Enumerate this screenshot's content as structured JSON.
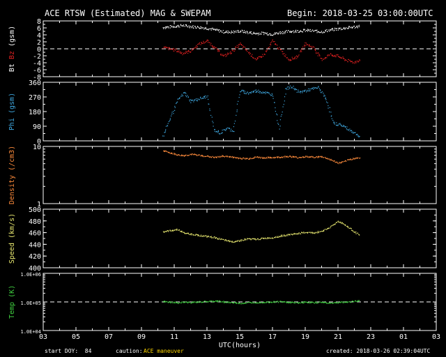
{
  "header": {
    "title": "ACE RTSW (Estimated) MAG & SWEPAM",
    "begin": "Begin: 2018-03-25 03:00:00UTC"
  },
  "footer": {
    "start_doy": "start DOY:  84",
    "caution_label": "caution:",
    "caution_value": "ACE maneuver",
    "created": "created: 2018-03-26 02:39:04UTC"
  },
  "colors": {
    "bt": "#ffffff",
    "bz": "#e02020",
    "phi": "#3fa8e0",
    "density": "#ff8c3c",
    "speed": "#e8e870",
    "temp": "#40d040",
    "frame": "#ffffff",
    "caution": "#ffd700"
  },
  "chart_data": {
    "type": "scatter",
    "xlabel": "UTC(hours)",
    "x_ticks": [
      "03",
      "05",
      "07",
      "09",
      "11",
      "13",
      "15",
      "17",
      "19",
      "21",
      "23",
      "01",
      "03"
    ],
    "x_range": [
      3,
      27
    ],
    "panels": [
      {
        "id": "mag",
        "ylabel_parts": [
          "Bt",
          " ",
          "Bz",
          " (gsm)"
        ],
        "ylim": [
          -8,
          8
        ],
        "y_ticks": [
          8,
          6,
          4,
          2,
          0,
          -2,
          -4,
          -6,
          -8
        ],
        "y_tick_labels": [
          "8",
          "6",
          "4",
          "2",
          "0",
          "-2",
          "-4",
          "-6",
          "-8"
        ],
        "reference_line": 0,
        "series": [
          {
            "name": "Bt",
            "color_key": "bt",
            "points": [
              [
                10.3,
                6.2
              ],
              [
                11.1,
                6.6
              ],
              [
                11.5,
                6.8
              ],
              [
                12,
                6.5
              ],
              [
                12.5,
                6.3
              ],
              [
                13,
                6.0
              ],
              [
                13.5,
                5.5
              ],
              [
                14,
                5.0
              ],
              [
                14.5,
                4.9
              ],
              [
                15,
                5.2
              ],
              [
                15.5,
                4.8
              ],
              [
                16,
                4.5
              ],
              [
                16.5,
                4.6
              ],
              [
                17,
                4.3
              ],
              [
                17.5,
                4.8
              ],
              [
                18,
                5.1
              ],
              [
                18.5,
                5.2
              ],
              [
                19,
                5.4
              ],
              [
                19.5,
                5.2
              ],
              [
                20,
                5.0
              ],
              [
                20.5,
                5.5
              ],
              [
                21,
                5.8
              ],
              [
                21.5,
                6.1
              ],
              [
                22,
                6.4
              ],
              [
                22.3,
                6.6
              ]
            ]
          },
          {
            "name": "Bz",
            "color_key": "bz",
            "points": [
              [
                10.3,
                0.5
              ],
              [
                11.1,
                -0.3
              ],
              [
                11.5,
                -1.2
              ],
              [
                12,
                -0.5
              ],
              [
                12.5,
                1.5
              ],
              [
                13,
                2.4
              ],
              [
                13.5,
                0.2
              ],
              [
                14,
                -2.0
              ],
              [
                14.5,
                -0.8
              ],
              [
                15,
                1.5
              ],
              [
                15.5,
                -0.8
              ],
              [
                16,
                -3.0
              ],
              [
                16.5,
                -1.5
              ],
              [
                17,
                2.4
              ],
              [
                17.5,
                -0.5
              ],
              [
                18,
                -3.0
              ],
              [
                18.5,
                -2.2
              ],
              [
                19,
                1.6
              ],
              [
                19.5,
                0.4
              ],
              [
                20,
                -3.0
              ],
              [
                20.5,
                -1.5
              ],
              [
                21,
                -2.0
              ],
              [
                21.5,
                -3.2
              ],
              [
                22,
                -3.8
              ],
              [
                22.3,
                -3.0
              ]
            ]
          }
        ]
      },
      {
        "id": "phi",
        "ylabel_parts": [
          "Phi (gsm)"
        ],
        "ylim": [
          0,
          360
        ],
        "y_ticks": [
          360,
          270,
          180,
          90,
          0
        ],
        "y_tick_labels": [
          "360",
          "270",
          "180",
          "90",
          "0"
        ],
        "series": [
          {
            "name": "Phi",
            "color_key": "phi",
            "points": [
              [
                10.3,
                30
              ],
              [
                11.2,
                250
              ],
              [
                11.6,
                300
              ],
              [
                12,
                245
              ],
              [
                12.5,
                260
              ],
              [
                13,
                275
              ],
              [
                13.4,
                70
              ],
              [
                13.8,
                50
              ],
              [
                14.2,
                80
              ],
              [
                14.6,
                65
              ],
              [
                15,
                310
              ],
              [
                15.5,
                295
              ],
              [
                16,
                310
              ],
              [
                16.5,
                300
              ],
              [
                17,
                285
              ],
              [
                17.4,
                80
              ],
              [
                17.8,
                320
              ],
              [
                18.2,
                335
              ],
              [
                18.6,
                300
              ],
              [
                19,
                310
              ],
              [
                19.4,
                320
              ],
              [
                19.8,
                330
              ],
              [
                20.3,
                250
              ],
              [
                20.7,
                110
              ],
              [
                21.2,
                100
              ],
              [
                21.6,
                75
              ],
              [
                22,
                50
              ],
              [
                22.3,
                30
              ]
            ]
          }
        ]
      },
      {
        "id": "density",
        "ylabel_parts": [
          "Density (/cm3)"
        ],
        "scale": "log",
        "ylim": [
          1,
          10
        ],
        "y_ticks": [
          10,
          1
        ],
        "y_tick_labels": [
          "10",
          "1"
        ],
        "series": [
          {
            "name": "Density",
            "color_key": "density",
            "points": [
              [
                10.3,
                8.5
              ],
              [
                11.2,
                7.2
              ],
              [
                11.6,
                7.0
              ],
              [
                12,
                7.4
              ],
              [
                12.5,
                7.1
              ],
              [
                13,
                6.8
              ],
              [
                13.5,
                6.5
              ],
              [
                14,
                6.9
              ],
              [
                14.5,
                6.6
              ],
              [
                15,
                6.3
              ],
              [
                15.5,
                6.2
              ],
              [
                16,
                6.6
              ],
              [
                16.5,
                6.4
              ],
              [
                17,
                6.5
              ],
              [
                17.5,
                6.6
              ],
              [
                18,
                6.8
              ],
              [
                18.5,
                6.5
              ],
              [
                19,
                6.7
              ],
              [
                19.5,
                6.6
              ],
              [
                20,
                6.7
              ],
              [
                20.5,
                6.0
              ],
              [
                21,
                5.2
              ],
              [
                21.3,
                5.4
              ],
              [
                21.6,
                5.9
              ],
              [
                22,
                6.3
              ],
              [
                22.3,
                6.4
              ]
            ]
          }
        ]
      },
      {
        "id": "speed",
        "ylabel_parts": [
          "Speed (km/s)"
        ],
        "ylim": [
          400,
          500
        ],
        "y_ticks": [
          500,
          480,
          460,
          440,
          420,
          400
        ],
        "y_tick_labels": [
          "500",
          "480",
          "460",
          "440",
          "420",
          "400"
        ],
        "series": [
          {
            "name": "Speed",
            "color_key": "speed",
            "points": [
              [
                10.3,
                462
              ],
              [
                11.2,
                466
              ],
              [
                11.6,
                460
              ],
              [
                12,
                458
              ],
              [
                12.5,
                456
              ],
              [
                13,
                454
              ],
              [
                13.5,
                452
              ],
              [
                14,
                448
              ],
              [
                14.5,
                445
              ],
              [
                15,
                447
              ],
              [
                15.5,
                450
              ],
              [
                16,
                449
              ],
              [
                16.5,
                451
              ],
              [
                17,
                452
              ],
              [
                17.5,
                455
              ],
              [
                18,
                457
              ],
              [
                18.5,
                459
              ],
              [
                19,
                461
              ],
              [
                19.5,
                460
              ],
              [
                20,
                463
              ],
              [
                20.5,
                470
              ],
              [
                21,
                480
              ],
              [
                21.3,
                476
              ],
              [
                21.6,
                470
              ],
              [
                22,
                462
              ],
              [
                22.3,
                456
              ]
            ]
          }
        ]
      },
      {
        "id": "temp",
        "ylabel_parts": [
          "Temp (K)"
        ],
        "scale": "log",
        "ylim": [
          10000,
          1000000
        ],
        "y_ticks": [
          1000000,
          100000,
          10000
        ],
        "y_tick_labels": [
          "1.0E+06",
          "1.0E+05",
          "1.0E+04"
        ],
        "reference_line": 100000,
        "series": [
          {
            "name": "Temp",
            "color_key": "temp",
            "points": [
              [
                10.3,
                105000
              ],
              [
                11.2,
                95000
              ],
              [
                11.6,
                100000
              ],
              [
                12,
                98000
              ],
              [
                12.5,
                102000
              ],
              [
                13,
                105000
              ],
              [
                13.5,
                110000
              ],
              [
                14,
                104000
              ],
              [
                14.5,
                97000
              ],
              [
                15,
                92000
              ],
              [
                15.5,
                96000
              ],
              [
                16,
                99000
              ],
              [
                16.5,
                101000
              ],
              [
                17,
                103000
              ],
              [
                17.5,
                105000
              ],
              [
                18,
                99000
              ],
              [
                18.5,
                96000
              ],
              [
                19,
                101000
              ],
              [
                19.5,
                97000
              ],
              [
                20,
                100000
              ],
              [
                20.5,
                94000
              ],
              [
                21,
                98000
              ],
              [
                21.5,
                102000
              ],
              [
                22,
                108000
              ],
              [
                22.3,
                112000
              ]
            ]
          }
        ]
      }
    ]
  }
}
